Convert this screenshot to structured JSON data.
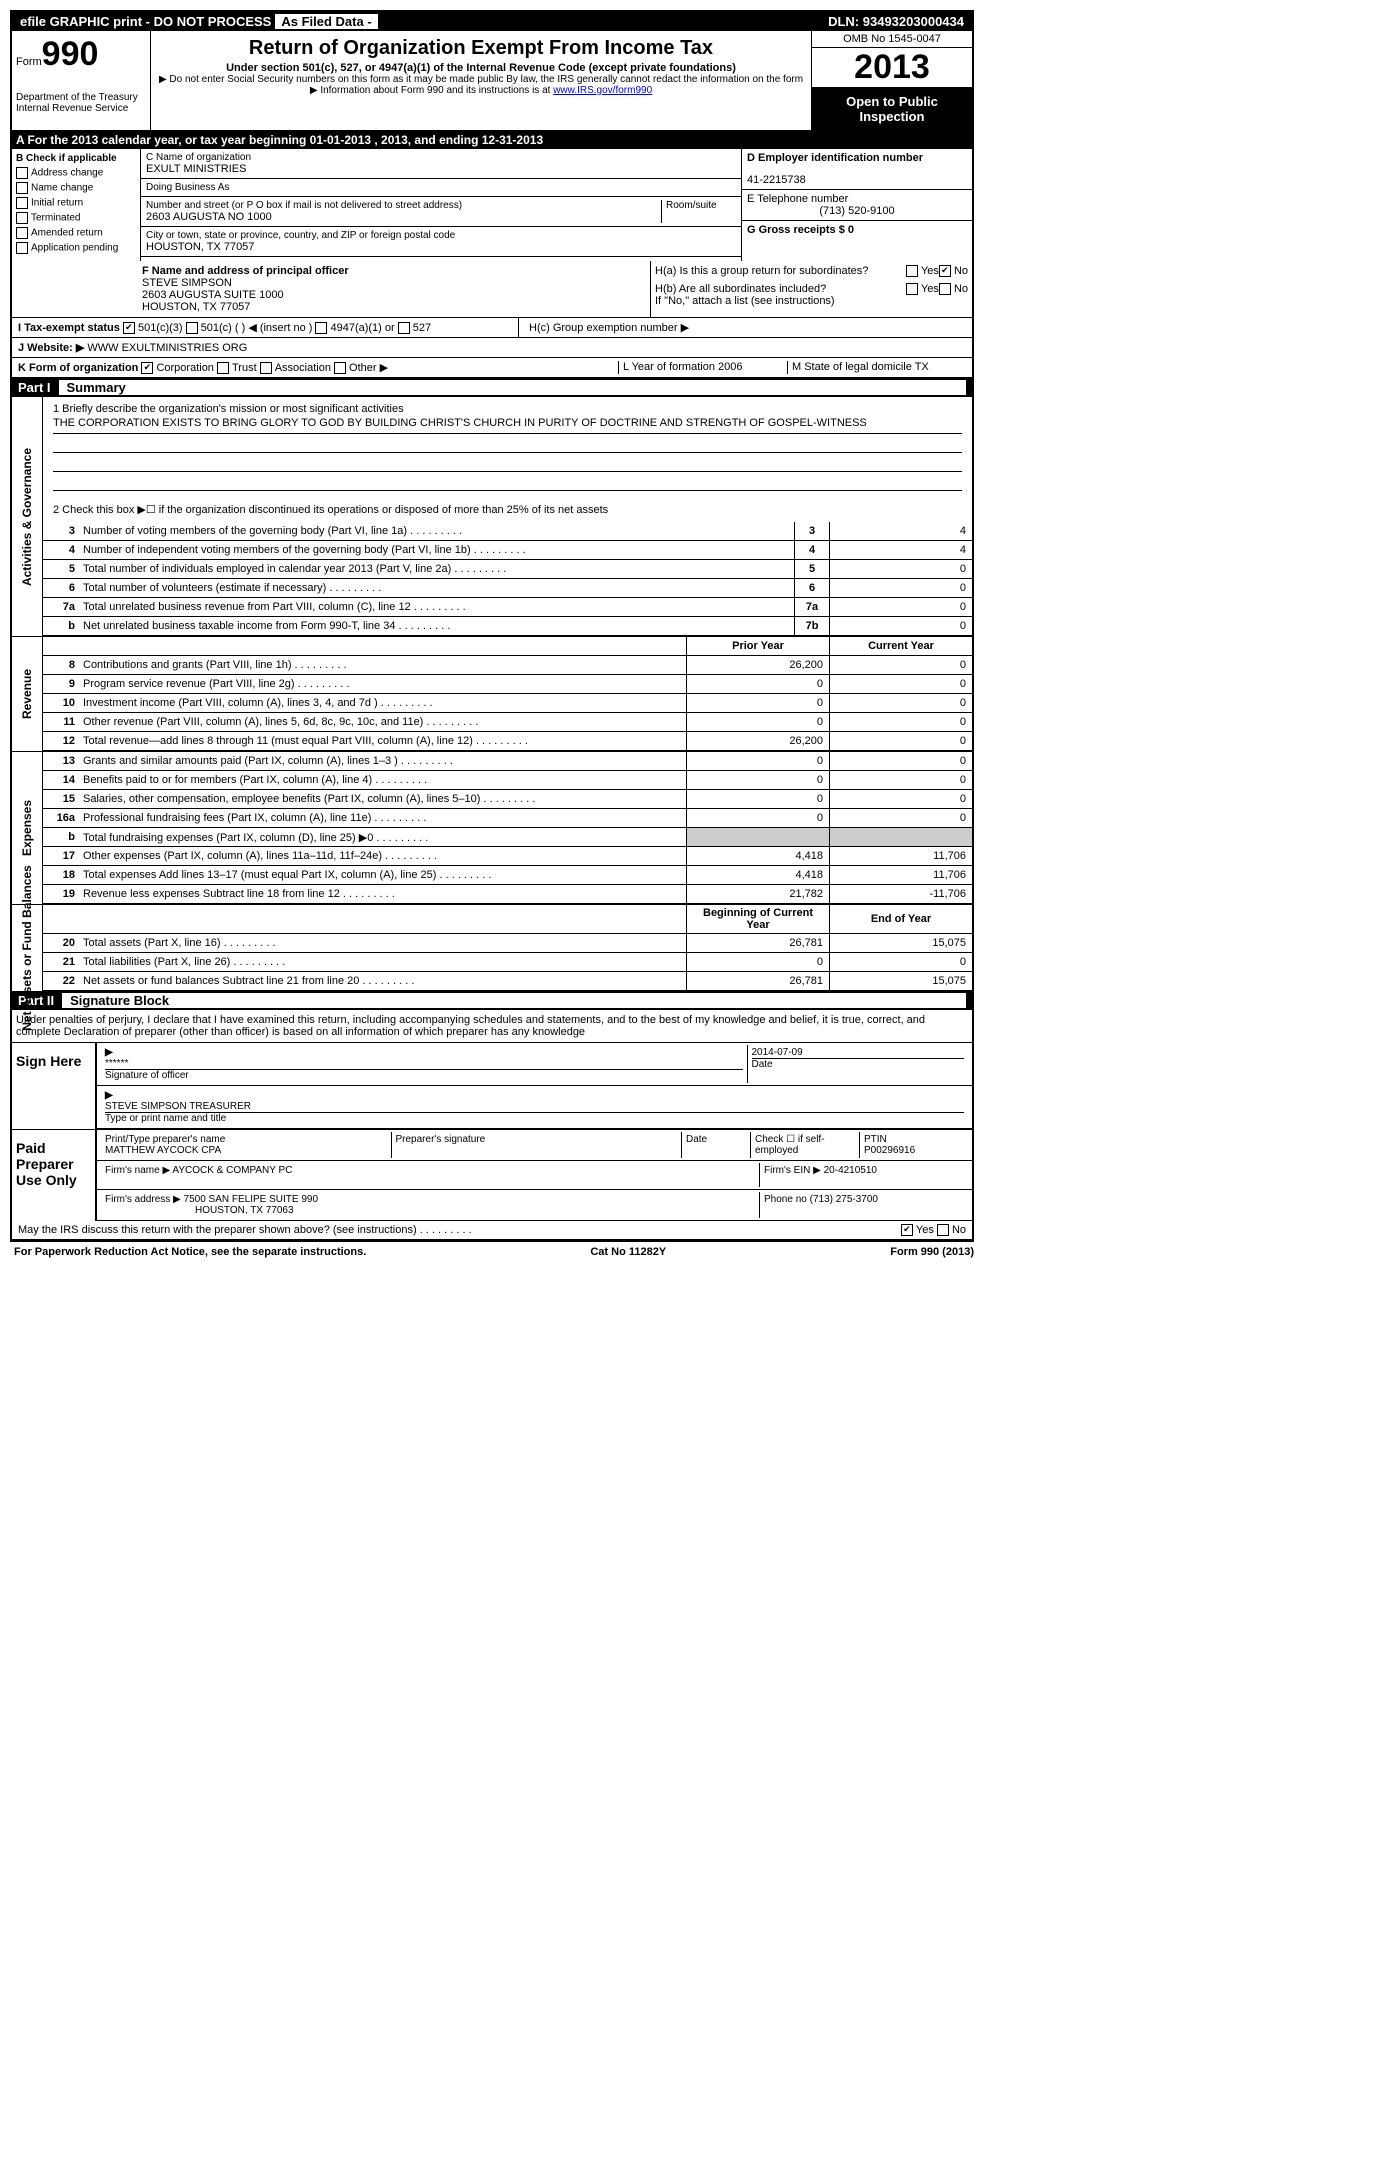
{
  "topbar": {
    "efile": "efile GRAPHIC print - DO NOT PROCESS",
    "asfiled": "As Filed Data -",
    "dln_label": "DLN:",
    "dln": "93493203000434"
  },
  "header": {
    "form_label": "Form",
    "form_num": "990",
    "dept": "Department of the Treasury",
    "irs": "Internal Revenue Service",
    "title": "Return of Organization Exempt From Income Tax",
    "subtitle": "Under section 501(c), 527, or 4947(a)(1) of the Internal Revenue Code (except private foundations)",
    "note1": "▶ Do not enter Social Security numbers on this form as it may be made public  By law, the IRS generally cannot redact the information on the form",
    "note2": "▶ Information about Form 990 and its instructions is at ",
    "link": "www.IRS.gov/form990",
    "omb": "OMB No  1545-0047",
    "year": "2013",
    "open": "Open to Public Inspection"
  },
  "row_a": "A  For the 2013 calendar year, or tax year beginning 01-01-2013     , 2013, and ending 12-31-2013",
  "col_b": {
    "title": "B  Check if applicable",
    "items": [
      "Address change",
      "Name change",
      "Initial return",
      "Terminated",
      "Amended return",
      "Application pending"
    ]
  },
  "col_c": {
    "name_lbl": "C Name of organization",
    "name": "EXULT MINISTRIES",
    "dba_lbl": "Doing Business As",
    "addr_lbl": "Number and street (or P O  box if mail is not delivered to street address)",
    "room_lbl": "Room/suite",
    "addr": "2603 AUGUSTA NO 1000",
    "city_lbl": "City or town, state or province, country, and ZIP or foreign postal code",
    "city": "HOUSTON, TX  77057"
  },
  "col_d": {
    "ein_lbl": "D Employer identification number",
    "ein": "41-2215738",
    "tel_lbl": "E Telephone number",
    "tel": "(713) 520-9100",
    "gross_lbl": "G Gross receipts $ 0"
  },
  "box_f": {
    "lbl": "F  Name and address of principal officer",
    "name": "STEVE SIMPSON",
    "addr1": "2603 AUGUSTA SUITE 1000",
    "addr2": "HOUSTON, TX  77057"
  },
  "box_h": {
    "ha": "H(a)  Is this a group return for subordinates?",
    "hb": "H(b)  Are all subordinates included?",
    "hnote": "If \"No,\" attach a list  (see instructions)",
    "hc": "H(c)   Group exemption number ▶"
  },
  "line_i": "I   Tax-exempt status",
  "line_i_opts": [
    "501(c)(3)",
    "501(c) (  ) ◀ (insert no )",
    "4947(a)(1) or",
    "527"
  ],
  "line_j_lbl": "J  Website: ▶",
  "line_j": "WWW EXULTMINISTRIES ORG",
  "line_k": "K Form of organization",
  "line_k_opts": [
    "Corporation",
    "Trust",
    "Association",
    "Other ▶"
  ],
  "line_l": "L Year of formation  2006",
  "line_m": "M State of legal domicile  TX",
  "parts": {
    "p1": "Part I",
    "p1t": "Summary",
    "p2": "Part II",
    "p2t": "Signature Block"
  },
  "mission": {
    "q1": "1   Briefly describe the organization's mission or most significant activities",
    "text": "THE CORPORATION EXISTS TO BRING GLORY TO GOD BY BUILDING CHRIST'S CHURCH IN PURITY OF DOCTRINE AND STRENGTH OF GOSPEL-WITNESS",
    "q2": "2   Check this box ▶☐ if the organization discontinued its operations or disposed of more than 25% of its net assets"
  },
  "gov_lines": [
    {
      "n": "3",
      "d": "Number of voting members of the governing body (Part VI, line 1a)",
      "b": "3",
      "v": "4"
    },
    {
      "n": "4",
      "d": "Number of independent voting members of the governing body (Part VI, line 1b)",
      "b": "4",
      "v": "4"
    },
    {
      "n": "5",
      "d": "Total number of individuals employed in calendar year 2013 (Part V, line 2a)",
      "b": "5",
      "v": "0"
    },
    {
      "n": "6",
      "d": "Total number of volunteers (estimate if necessary)",
      "b": "6",
      "v": "0"
    },
    {
      "n": "7a",
      "d": "Total unrelated business revenue from Part VIII, column (C), line 12",
      "b": "7a",
      "v": "0"
    },
    {
      "n": "b",
      "d": "Net unrelated business taxable income from Form 990-T, line 34",
      "b": "7b",
      "v": "0"
    }
  ],
  "col_headers": {
    "prior": "Prior Year",
    "current": "Current Year",
    "boy": "Beginning of Current Year",
    "eoy": "End of Year"
  },
  "rev_lines": [
    {
      "n": "8",
      "d": "Contributions and grants (Part VIII, line 1h)",
      "p": "26,200",
      "c": "0"
    },
    {
      "n": "9",
      "d": "Program service revenue (Part VIII, line 2g)",
      "p": "0",
      "c": "0"
    },
    {
      "n": "10",
      "d": "Investment income (Part VIII, column (A), lines 3, 4, and 7d )",
      "p": "0",
      "c": "0"
    },
    {
      "n": "11",
      "d": "Other revenue (Part VIII, column (A), lines 5, 6d, 8c, 9c, 10c, and 11e)",
      "p": "0",
      "c": "0"
    },
    {
      "n": "12",
      "d": "Total revenue—add lines 8 through 11 (must equal Part VIII, column (A), line 12)",
      "p": "26,200",
      "c": "0"
    }
  ],
  "exp_lines": [
    {
      "n": "13",
      "d": "Grants and similar amounts paid (Part IX, column (A), lines 1–3 )",
      "p": "0",
      "c": "0"
    },
    {
      "n": "14",
      "d": "Benefits paid to or for members (Part IX, column (A), line 4)",
      "p": "0",
      "c": "0"
    },
    {
      "n": "15",
      "d": "Salaries, other compensation, employee benefits (Part IX, column (A), lines 5–10)",
      "p": "0",
      "c": "0"
    },
    {
      "n": "16a",
      "d": "Professional fundraising fees (Part IX, column (A), line 11e)",
      "p": "0",
      "c": "0"
    },
    {
      "n": "b",
      "d": "Total fundraising expenses (Part IX, column (D), line 25) ▶0",
      "p": "",
      "c": ""
    },
    {
      "n": "17",
      "d": "Other expenses (Part IX, column (A), lines 11a–11d, 11f–24e)",
      "p": "4,418",
      "c": "11,706"
    },
    {
      "n": "18",
      "d": "Total expenses  Add lines 13–17 (must equal Part IX, column (A), line 25)",
      "p": "4,418",
      "c": "11,706"
    },
    {
      "n": "19",
      "d": "Revenue less expenses  Subtract line 18 from line 12",
      "p": "21,782",
      "c": "-11,706"
    }
  ],
  "net_lines": [
    {
      "n": "20",
      "d": "Total assets (Part X, line 16)",
      "p": "26,781",
      "c": "15,075"
    },
    {
      "n": "21",
      "d": "Total liabilities (Part X, line 26)",
      "p": "0",
      "c": "0"
    },
    {
      "n": "22",
      "d": "Net assets or fund balances  Subtract line 21 from line 20",
      "p": "26,781",
      "c": "15,075"
    }
  ],
  "vert": {
    "gov": "Activities & Governance",
    "rev": "Revenue",
    "exp": "Expenses",
    "net": "Net Assets or Fund Balances"
  },
  "sig": {
    "decl": "Under penalties of perjury, I declare that I have examined this return, including accompanying schedules and statements, and to the best of my knowledge and belief, it is true, correct, and complete  Declaration of preparer (other than officer) is based on all information of which preparer has any knowledge",
    "sign_here": "Sign Here",
    "stars": "******",
    "sig_officer": "Signature of officer",
    "date": "2014-07-09",
    "date_lbl": "Date",
    "officer": "STEVE SIMPSON TREASURER",
    "officer_lbl": "Type or print name and title",
    "paid": "Paid Preparer Use Only",
    "prep_name_lbl": "Print/Type preparer's name",
    "prep_name": "MATTHEW AYCOCK CPA",
    "prep_sig_lbl": "Preparer's signature",
    "self_emp": "Check ☐ if self-employed",
    "ptin_lbl": "PTIN",
    "ptin": "P00296916",
    "firm_name_lbl": "Firm's name    ▶",
    "firm_name": "AYCOCK & COMPANY PC",
    "firm_ein_lbl": "Firm's EIN ▶",
    "firm_ein": "20-4210510",
    "firm_addr_lbl": "Firm's address ▶",
    "firm_addr": "7500 SAN FELIPE SUITE 990",
    "firm_city": "HOUSTON, TX  77063",
    "phone_lbl": "Phone no",
    "phone": "(713) 275-3700",
    "discuss": "May the IRS discuss this return with the preparer shown above? (see instructions)",
    "yes": "Yes",
    "no": "No"
  },
  "footer": {
    "left": "For Paperwork Reduction Act Notice, see the separate instructions.",
    "center": "Cat No  11282Y",
    "right": "Form 990 (2013)"
  }
}
